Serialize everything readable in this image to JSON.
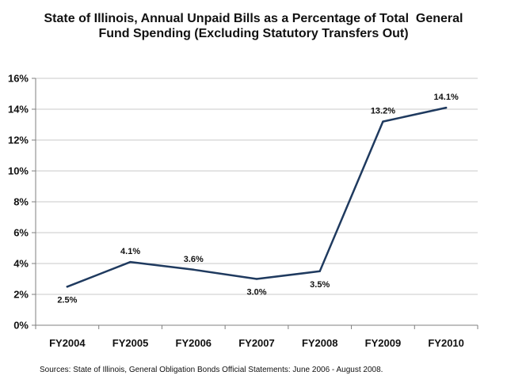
{
  "chart_data": {
    "type": "line",
    "title_lines": [
      "State of Illinois, Annual Unpaid Bills as a Percentage of Total  General",
      "Fund Spending (Excluding Statutory Transfers Out)"
    ],
    "categories": [
      "FY2004",
      "FY2005",
      "FY2006",
      "FY2007",
      "FY2008",
      "FY2009",
      "FY2010"
    ],
    "values": [
      2.5,
      4.1,
      3.6,
      3.0,
      3.5,
      13.2,
      14.1
    ],
    "data_labels": [
      "2.5%",
      "4.1%",
      "3.6%",
      "3.0%",
      "3.5%",
      "13.2%",
      "14.1%"
    ],
    "label_placement": [
      "below",
      "above",
      "above",
      "below",
      "below",
      "above",
      "above"
    ],
    "ylim": [
      0,
      16
    ],
    "yticks": [
      0,
      2,
      4,
      6,
      8,
      10,
      12,
      14,
      16
    ],
    "ytick_labels": [
      "0%",
      "2%",
      "4%",
      "6%",
      "8%",
      "10%",
      "12%",
      "14%",
      "16%"
    ],
    "xlabel": "",
    "ylabel": "",
    "grid": true,
    "legend": "none",
    "line_color": "#1F3A5F",
    "grid_color": "#C8C8C8",
    "axis_color": "#7F7F7F"
  },
  "source_note": "Sources: State of Illinois, General Obligation Bonds Official Statements: June 2006 - August 2008."
}
